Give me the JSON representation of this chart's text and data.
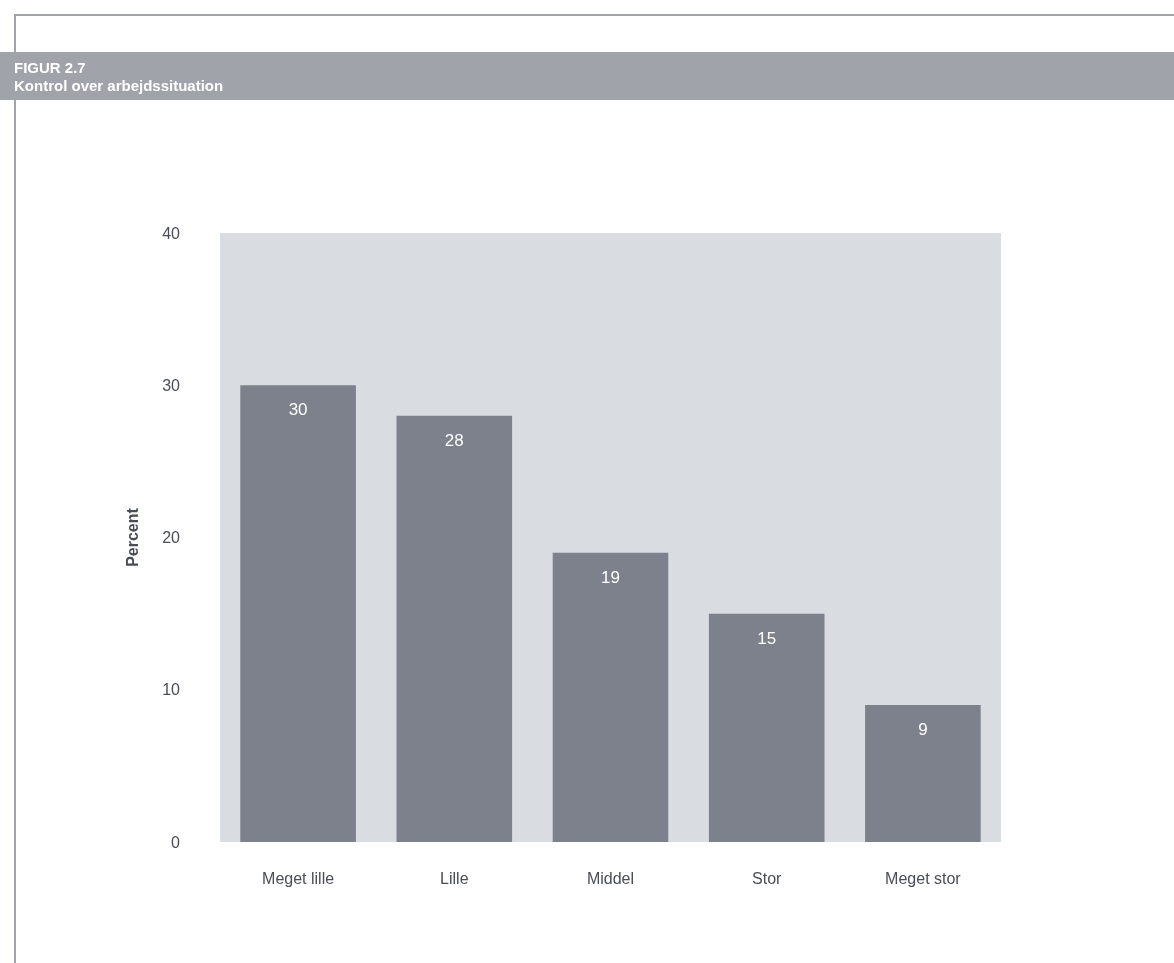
{
  "chart_data": {
    "type": "bar",
    "title": "FIGUR 2.7",
    "subtitle": "Kontrol over arbejdssituation",
    "ylabel": "Percent",
    "categories": [
      "Meget lille",
      "Lille",
      "Middel",
      "Stor",
      "Meget stor"
    ],
    "values": [
      30,
      28,
      19,
      15,
      9
    ],
    "color": "#7c818c",
    "ylim": [
      0,
      40
    ],
    "yticks": [
      0,
      10,
      20,
      30,
      40
    ],
    "data_labels": true
  }
}
